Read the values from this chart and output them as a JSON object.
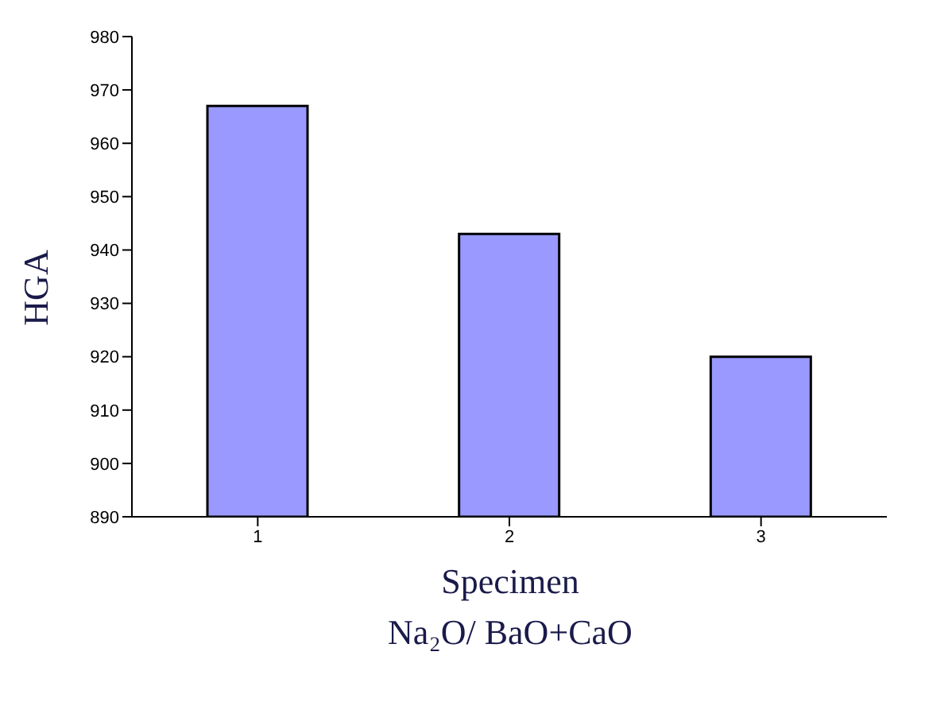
{
  "chart_data": {
    "type": "bar",
    "categories": [
      "1",
      "2",
      "3"
    ],
    "values": [
      967,
      943,
      920
    ],
    "color": "#9999ff",
    "ylim": [
      890,
      980
    ],
    "yticks": [
      890,
      900,
      910,
      920,
      930,
      940,
      950,
      960,
      970,
      980
    ],
    "xlabel": "Specimen",
    "ylabel": "HGA",
    "annotations": [
      "Na₂O/ BaO+CaO"
    ],
    "grid": false
  }
}
